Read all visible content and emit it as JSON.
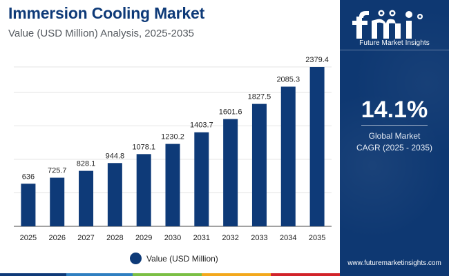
{
  "header": {
    "title": "Immersion Cooling Market",
    "subtitle": "Value (USD Million) Analysis, 2025-2035"
  },
  "legend": {
    "label": "Value (USD Million)"
  },
  "panel": {
    "brand": "Future Market Insights",
    "cagr_value": "14.1%",
    "cagr_label_line1": "Global Market",
    "cagr_label_line2": "CAGR (2025 - 2035)",
    "website": "www.futuremarketinsights.com"
  },
  "colors": {
    "bar": "#0e3a78",
    "panel": "#0e3872",
    "accent_bar": [
      "#0e3a78",
      "#2f7fc1",
      "#7bbf44",
      "#f3a81c",
      "#d2232a"
    ]
  },
  "chart_data": {
    "type": "bar",
    "title": "Immersion Cooling Market",
    "subtitle": "Value (USD Million) Analysis, 2025-2035",
    "xlabel": "",
    "ylabel": "",
    "ylim": [
      0,
      3000
    ],
    "grid": true,
    "legend_position": "bottom",
    "categories": [
      "2025",
      "2026",
      "2027",
      "2028",
      "2029",
      "2030",
      "2031",
      "2032",
      "2033",
      "2034",
      "2035"
    ],
    "series": [
      {
        "name": "Value (USD Million)",
        "values": [
          636,
          725.7,
          828.1,
          944.8,
          1078.1,
          1230.2,
          1403.7,
          1601.6,
          1827.5,
          2085.3,
          2379.4
        ],
        "labels": [
          "636",
          "725.7",
          "828.1",
          "944.8",
          "1078.1",
          "1230.2",
          "1403.7",
          "1601.6",
          "1827.5",
          "2085.3",
          "2379.4"
        ]
      }
    ]
  }
}
